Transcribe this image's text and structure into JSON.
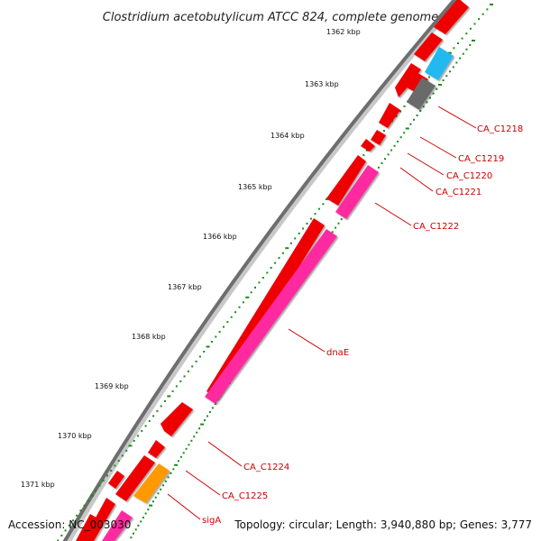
{
  "title": "Clostridium acetobutylicum ATCC 824, complete genome",
  "footer": {
    "accession": "Accession: NC_003030",
    "topology": "Topology: circular; Length: 3,940,880 bp; Genes: 3,777"
  },
  "colors": {
    "backbone_dark": "#6e6e6e",
    "backbone_light": "#c8c8c8",
    "cds_red": "#ee0000",
    "cds_magenta": "#ff2aa0",
    "cds_cyan": "#22b8f0",
    "cds_gray": "#6a6a6a",
    "cds_orange": "#ff9900",
    "tick_green": "#1a8a1a",
    "label_red": "#cc0000"
  },
  "ticks": [
    {
      "label": "1362 kbp"
    },
    {
      "label": "1363 kbp"
    },
    {
      "label": "1364 kbp"
    },
    {
      "label": "1365 kbp"
    },
    {
      "label": "1366 kbp"
    },
    {
      "label": "1367 kbp"
    },
    {
      "label": "1368 kbp"
    },
    {
      "label": "1369 kbp"
    },
    {
      "label": "1370 kbp"
    },
    {
      "label": "1371 kbp"
    }
  ],
  "gene_labels": [
    {
      "text": "CA_C1218"
    },
    {
      "text": "CA_C1219"
    },
    {
      "text": "CA_C1220"
    },
    {
      "text": "CA_C1221"
    },
    {
      "text": "CA_C1222"
    },
    {
      "text": "dnaE"
    },
    {
      "text": "CA_C1224"
    },
    {
      "text": "CA_C1225"
    },
    {
      "text": "sigA"
    }
  ]
}
